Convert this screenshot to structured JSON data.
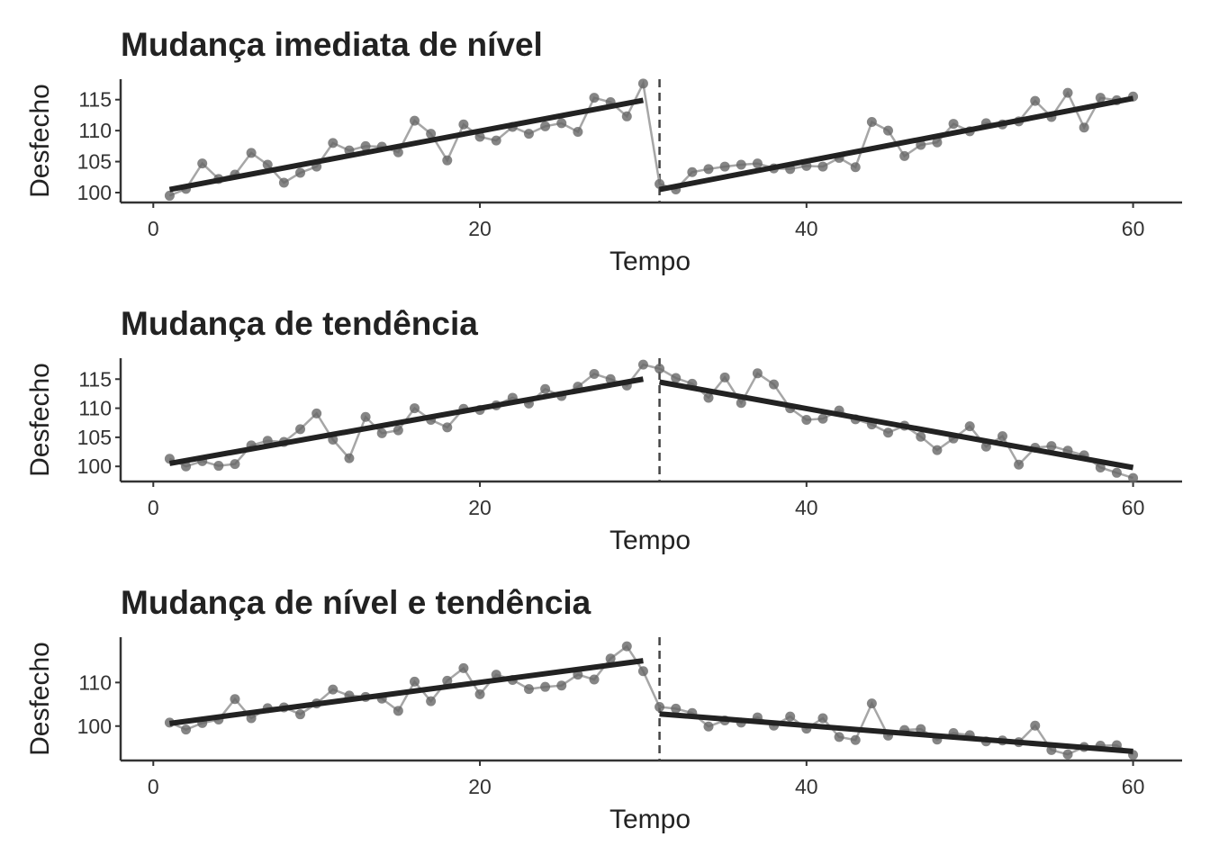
{
  "chart_data": [
    {
      "type": "line",
      "title": "Mudança imediata de nível",
      "xlabel": "Tempo",
      "ylabel": "Desfecho",
      "xlim": [
        -2,
        63
      ],
      "ylim": [
        98.4,
        118.3
      ],
      "xticks": [
        0,
        20,
        40,
        60
      ],
      "yticks": [
        100,
        105,
        110,
        115
      ],
      "intervention_x": 31,
      "series": [
        {
          "kind": "observed",
          "x": [
            1,
            2,
            3,
            4,
            5,
            6,
            7,
            8,
            9,
            10,
            11,
            12,
            13,
            14,
            15,
            16,
            17,
            18,
            19,
            20,
            21,
            22,
            23,
            24,
            25,
            26,
            27,
            28,
            29,
            30,
            31,
            32,
            33,
            34,
            35,
            36,
            37,
            38,
            39,
            40,
            41,
            42,
            43,
            44,
            45,
            46,
            47,
            48,
            49,
            50,
            51,
            52,
            53,
            54,
            55,
            56,
            57,
            58,
            59,
            60
          ],
          "values": [
            99.5,
            100.6,
            104.7,
            102.2,
            102.9,
            106.4,
            104.5,
            101.6,
            103.2,
            104.2,
            108.0,
            106.8,
            107.5,
            107.4,
            106.5,
            111.6,
            109.5,
            105.2,
            111.0,
            109.0,
            108.4,
            110.6,
            109.5,
            110.7,
            111.2,
            109.8,
            115.3,
            114.6,
            112.3,
            117.6,
            101.4,
            100.5,
            103.3,
            103.8,
            104.2,
            104.5,
            104.7,
            103.9,
            103.8,
            104.3,
            104.2,
            105.6,
            104.1,
            111.4,
            110.0,
            105.9,
            107.7,
            108.1,
            111.1,
            109.9,
            111.2,
            111.0,
            111.5,
            114.8,
            112.2,
            116.1,
            110.5,
            115.3,
            114.9,
            115.5
          ]
        },
        {
          "kind": "trend",
          "segment": "pre",
          "x": [
            1,
            30
          ],
          "values": [
            100.5,
            114.9
          ]
        },
        {
          "kind": "trend",
          "segment": "post",
          "x": [
            31,
            60
          ],
          "values": [
            100.5,
            115.2
          ]
        }
      ]
    },
    {
      "type": "line",
      "title": "Mudança de tendência",
      "xlabel": "Tempo",
      "ylabel": "Desfecho",
      "xlim": [
        -2,
        63
      ],
      "ylim": [
        97.4,
        118.6
      ],
      "xticks": [
        0,
        20,
        40,
        60
      ],
      "yticks": [
        100,
        105,
        110,
        115
      ],
      "intervention_x": 31,
      "series": [
        {
          "kind": "observed",
          "x": [
            1,
            2,
            3,
            4,
            5,
            6,
            7,
            8,
            9,
            10,
            11,
            12,
            13,
            14,
            15,
            16,
            17,
            18,
            19,
            20,
            21,
            22,
            23,
            24,
            25,
            26,
            27,
            28,
            29,
            30,
            31,
            32,
            33,
            34,
            35,
            36,
            37,
            38,
            39,
            40,
            41,
            42,
            43,
            44,
            45,
            46,
            47,
            48,
            49,
            50,
            51,
            52,
            53,
            54,
            55,
            56,
            57,
            58,
            59,
            60
          ],
          "values": [
            101.3,
            100.0,
            100.9,
            100.1,
            100.4,
            103.6,
            104.4,
            104.2,
            106.4,
            109.1,
            104.6,
            101.4,
            108.5,
            105.7,
            106.2,
            110.0,
            108.0,
            106.7,
            109.9,
            109.7,
            110.5,
            111.8,
            110.8,
            113.3,
            112.1,
            113.7,
            115.9,
            115.0,
            113.9,
            117.5,
            116.8,
            115.2,
            114.2,
            111.8,
            115.3,
            110.9,
            116.0,
            114.1,
            110.0,
            108.0,
            108.2,
            109.6,
            108.1,
            107.2,
            105.8,
            107.0,
            105.1,
            102.8,
            104.8,
            106.9,
            103.4,
            105.2,
            100.3,
            103.2,
            103.5,
            102.7,
            101.9,
            99.8,
            98.9,
            98.0
          ]
        },
        {
          "kind": "trend",
          "segment": "pre",
          "x": [
            1,
            30
          ],
          "values": [
            100.5,
            115.0
          ]
        },
        {
          "kind": "trend",
          "segment": "post",
          "x": [
            31,
            60
          ],
          "values": [
            114.5,
            99.8
          ]
        }
      ]
    },
    {
      "type": "line",
      "title": "Mudança de nível e tendência",
      "xlabel": "Tempo",
      "ylabel": "Desfecho",
      "xlim": [
        -2,
        63
      ],
      "ylim": [
        92.1,
        120.4
      ],
      "xticks": [
        0,
        20,
        40,
        60
      ],
      "yticks": [
        100,
        110
      ],
      "intervention_x": 31,
      "series": [
        {
          "kind": "observed",
          "x": [
            1,
            2,
            3,
            4,
            5,
            6,
            7,
            8,
            9,
            10,
            11,
            12,
            13,
            14,
            15,
            16,
            17,
            18,
            19,
            20,
            21,
            22,
            23,
            24,
            25,
            26,
            27,
            28,
            29,
            30,
            31,
            32,
            33,
            34,
            35,
            36,
            37,
            38,
            39,
            40,
            41,
            42,
            43,
            44,
            45,
            46,
            47,
            48,
            49,
            50,
            51,
            52,
            53,
            54,
            55,
            56,
            57,
            58,
            59,
            60
          ],
          "values": [
            100.8,
            99.2,
            100.7,
            101.5,
            106.2,
            101.8,
            104.1,
            104.3,
            102.7,
            105.2,
            108.4,
            107.0,
            106.7,
            106.3,
            103.5,
            110.2,
            105.7,
            110.4,
            113.3,
            107.3,
            111.8,
            110.6,
            108.5,
            109.0,
            109.3,
            111.8,
            110.7,
            115.5,
            118.3,
            112.6,
            104.4,
            104.0,
            103.0,
            99.9,
            101.3,
            100.8,
            102.0,
            100.1,
            102.2,
            99.4,
            101.8,
            97.5,
            96.8,
            105.2,
            97.8,
            99.1,
            99.3,
            96.9,
            98.4,
            97.9,
            96.5,
            96.7,
            96.3,
            100.1,
            94.5,
            93.5,
            95.2,
            95.5,
            95.6,
            93.4
          ]
        },
        {
          "kind": "trend",
          "segment": "pre",
          "x": [
            1,
            30
          ],
          "values": [
            100.6,
            115.0
          ]
        },
        {
          "kind": "trend",
          "segment": "post",
          "x": [
            31,
            60
          ],
          "values": [
            102.8,
            94.2
          ]
        }
      ]
    }
  ]
}
